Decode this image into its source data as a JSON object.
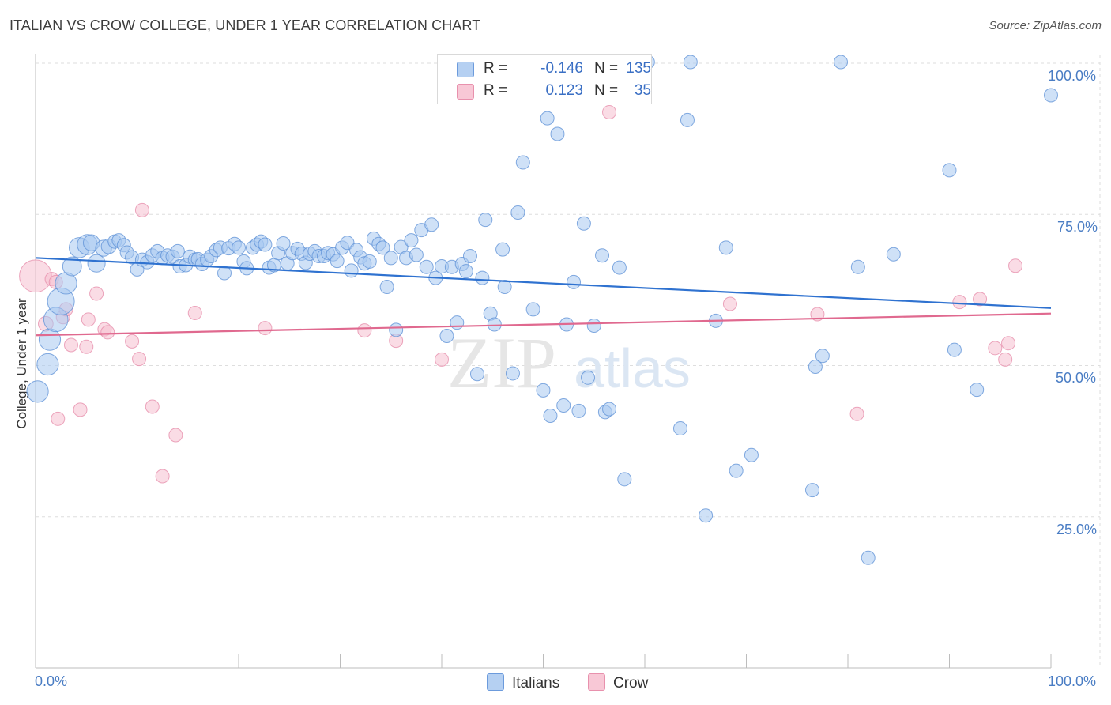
{
  "title": "ITALIAN VS CROW COLLEGE, UNDER 1 YEAR CORRELATION CHART",
  "source": "Source: ZipAtlas.com",
  "watermark": {
    "zip": "ZIP",
    "atlas": "atlas"
  },
  "colors": {
    "blue_fill": "#a8c8f0",
    "blue_stroke": "#5b8fd6",
    "blue_line": "#2f72d0",
    "pink_fill": "#f6bfd0",
    "pink_stroke": "#e58aa8",
    "pink_line": "#e0698f",
    "tick_text": "#4a7dc4",
    "grid": "#dedede"
  },
  "legend": {
    "italians": {
      "r_label": "R =",
      "r_value": "-0.146",
      "n_label": "N =",
      "n_value": "135"
    },
    "crow": {
      "r_label": "R =",
      "r_value": "0.123",
      "n_label": "N =",
      "n_value": "35"
    }
  },
  "chart_data": {
    "type": "scatter",
    "title": "ITALIAN VS CROW COLLEGE, UNDER 1 YEAR CORRELATION CHART",
    "xlabel": "",
    "ylabel": "College, Under 1 year",
    "xlim": [
      0,
      100
    ],
    "ylim": [
      0,
      100
    ],
    "x_tick_labels": [
      "0.0%",
      "100.0%"
    ],
    "y_tick_labels": [
      "100.0%",
      "75.0%",
      "50.0%",
      "25.0%"
    ],
    "y_ticks": [
      100,
      75,
      50,
      25
    ],
    "grid": true,
    "legend_position": "bottom-center",
    "series": [
      {
        "name": "Italians",
        "trend": {
          "x": [
            0,
            100
          ],
          "y": [
            67.8,
            59.5
          ]
        },
        "points": [
          [
            0.2,
            45.7,
            1.6
          ],
          [
            1.2,
            50.2,
            1.6
          ],
          [
            1.4,
            54.3,
            1.6
          ],
          [
            2.0,
            57.6,
            1.8
          ],
          [
            2.5,
            60.6,
            2.0
          ],
          [
            3.0,
            63.6,
            1.6
          ],
          [
            3.6,
            66.4,
            1.4
          ],
          [
            4.3,
            69.5,
            1.5
          ],
          [
            5.1,
            70.0,
            1.5
          ],
          [
            5.5,
            70.3,
            1.2
          ],
          [
            6.0,
            66.9,
            1.3
          ],
          [
            6.7,
            69.4,
            1.2
          ],
          [
            7.2,
            69.7,
            1.1
          ],
          [
            7.8,
            70.5,
            1.0
          ],
          [
            8.2,
            70.7,
            1.0
          ],
          [
            8.7,
            69.9,
            1.0
          ],
          [
            9.0,
            68.7,
            1.0
          ],
          [
            9.5,
            67.9,
            1.0
          ],
          [
            10.0,
            65.9,
            1.0
          ],
          [
            10.5,
            67.5,
            1.0
          ],
          [
            11.0,
            67.1,
            1.0
          ],
          [
            11.5,
            68.2,
            1.0
          ],
          [
            12.0,
            68.9,
            1.0
          ],
          [
            12.5,
            67.8,
            1.0
          ],
          [
            13.0,
            68.2,
            1.0
          ],
          [
            13.5,
            68.0,
            1.0
          ],
          [
            14.0,
            68.9,
            1.0
          ],
          [
            14.2,
            66.4,
            1.0
          ],
          [
            14.8,
            66.6,
            1.0
          ],
          [
            15.2,
            68.0,
            1.0
          ],
          [
            15.7,
            67.5,
            1.0
          ],
          [
            16.0,
            67.6,
            1.0
          ],
          [
            16.4,
            66.8,
            1.0
          ],
          [
            16.9,
            67.5,
            1.0
          ],
          [
            17.3,
            68.1,
            1.0
          ],
          [
            17.8,
            69.1,
            1.0
          ],
          [
            18.2,
            69.5,
            1.0
          ],
          [
            18.6,
            65.3,
            1.0
          ],
          [
            19.0,
            69.4,
            1.0
          ],
          [
            19.6,
            70.1,
            1.0
          ],
          [
            20.0,
            69.5,
            1.0
          ],
          [
            20.5,
            67.2,
            1.0
          ],
          [
            20.8,
            66.1,
            1.0
          ],
          [
            21.4,
            69.5,
            1.0
          ],
          [
            21.8,
            70.0,
            1.0
          ],
          [
            22.2,
            70.5,
            1.0
          ],
          [
            22.6,
            70.0,
            1.0
          ],
          [
            23.0,
            66.2,
            1.0
          ],
          [
            23.5,
            66.6,
            1.0
          ],
          [
            23.9,
            68.6,
            1.0
          ],
          [
            24.4,
            70.2,
            1.0
          ],
          [
            24.8,
            66.9,
            1.0
          ],
          [
            25.3,
            68.6,
            1.0
          ],
          [
            25.8,
            69.3,
            1.0
          ],
          [
            26.2,
            68.5,
            1.0
          ],
          [
            26.6,
            67.0,
            1.0
          ],
          [
            27.0,
            68.5,
            1.0
          ],
          [
            27.5,
            68.9,
            1.0
          ],
          [
            27.9,
            68.1,
            1.0
          ],
          [
            28.4,
            68.1,
            1.0
          ],
          [
            28.8,
            68.6,
            1.0
          ],
          [
            29.3,
            68.4,
            1.0
          ],
          [
            29.7,
            67.3,
            1.0
          ],
          [
            30.2,
            69.5,
            1.0
          ],
          [
            30.7,
            70.3,
            1.0
          ],
          [
            31.1,
            65.7,
            1.0
          ],
          [
            31.6,
            69.1,
            1.0
          ],
          [
            32.0,
            67.9,
            1.0
          ],
          [
            32.4,
            66.9,
            1.0
          ],
          [
            32.9,
            67.2,
            1.0
          ],
          [
            33.3,
            71.0,
            1.0
          ],
          [
            33.8,
            70.1,
            1.0
          ],
          [
            34.2,
            69.5,
            1.0
          ],
          [
            34.6,
            63.0,
            1.0
          ],
          [
            35.0,
            67.8,
            1.0
          ],
          [
            35.5,
            55.9,
            1.0
          ],
          [
            36.0,
            69.6,
            1.0
          ],
          [
            36.5,
            67.8,
            1.0
          ],
          [
            37.0,
            70.7,
            1.0
          ],
          [
            37.5,
            68.3,
            1.0
          ],
          [
            38.0,
            72.4,
            1.0
          ],
          [
            38.5,
            66.3,
            1.0
          ],
          [
            39.0,
            73.3,
            1.0
          ],
          [
            39.4,
            64.5,
            1.0
          ],
          [
            40.0,
            66.4,
            1.0
          ],
          [
            40.5,
            54.9,
            1.0
          ],
          [
            41.0,
            66.3,
            1.0
          ],
          [
            41.5,
            57.1,
            1.0
          ],
          [
            42.0,
            66.8,
            1.0
          ],
          [
            42.4,
            65.6,
            1.0
          ],
          [
            42.8,
            68.1,
            1.0
          ],
          [
            43.5,
            48.6,
            1.0
          ],
          [
            44.0,
            64.5,
            1.0
          ],
          [
            44.3,
            74.1,
            1.0
          ],
          [
            44.8,
            58.6,
            1.0
          ],
          [
            45.2,
            56.8,
            1.0
          ],
          [
            46.0,
            69.2,
            1.0
          ],
          [
            46.2,
            63.0,
            1.0
          ],
          [
            47.0,
            48.7,
            1.0
          ],
          [
            47.5,
            75.3,
            1.0
          ],
          [
            48.0,
            83.6,
            1.0
          ],
          [
            49.0,
            59.3,
            1.0
          ],
          [
            50.0,
            45.9,
            1.0
          ],
          [
            50.4,
            90.9,
            1.0
          ],
          [
            50.7,
            41.7,
            1.0
          ],
          [
            51.4,
            88.3,
            1.0
          ],
          [
            52.0,
            43.4,
            1.0
          ],
          [
            52.3,
            56.8,
            1.0
          ],
          [
            53.0,
            63.8,
            1.0
          ],
          [
            53.5,
            42.5,
            1.0
          ],
          [
            54.0,
            73.5,
            1.0
          ],
          [
            54.4,
            48.0,
            1.0
          ],
          [
            55.0,
            56.6,
            1.0
          ],
          [
            55.8,
            68.2,
            1.0
          ],
          [
            56.1,
            42.3,
            1.0
          ],
          [
            56.5,
            42.8,
            1.0
          ],
          [
            57.5,
            66.2,
            1.0
          ],
          [
            58.0,
            31.2,
            1.0
          ],
          [
            63.5,
            39.6,
            1.0
          ],
          [
            64.2,
            90.6,
            1.0
          ],
          [
            64.5,
            100.2,
            1.0
          ],
          [
            66.0,
            25.2,
            1.0
          ],
          [
            67.0,
            57.4,
            1.0
          ],
          [
            68.0,
            69.5,
            1.0
          ],
          [
            69.0,
            32.6,
            1.0
          ],
          [
            70.5,
            35.2,
            1.0
          ],
          [
            76.5,
            29.4,
            1.0
          ],
          [
            76.8,
            49.8,
            1.0
          ],
          [
            77.5,
            51.6,
            1.0
          ],
          [
            79.3,
            100.2,
            1.0
          ],
          [
            81.0,
            66.3,
            1.0
          ],
          [
            82.0,
            18.2,
            1.0
          ],
          [
            84.5,
            68.4,
            1.0
          ],
          [
            90.0,
            82.3,
            1.0
          ],
          [
            90.5,
            52.6,
            1.0
          ],
          [
            92.7,
            46.0,
            1.0
          ],
          [
            100.0,
            94.7,
            1.0
          ],
          [
            56.2,
            100.1,
            1.0
          ],
          [
            60.3,
            100.2,
            1.0
          ]
        ]
      },
      {
        "name": "Crow",
        "trend": {
          "x": [
            0,
            100
          ],
          "y": [
            55.0,
            58.6
          ]
        },
        "points": [
          [
            0.0,
            64.8,
            2.4
          ],
          [
            1.0,
            56.9,
            1.1
          ],
          [
            1.6,
            64.3,
            1.0
          ],
          [
            2.0,
            63.8,
            1.0
          ],
          [
            2.2,
            41.2,
            1.0
          ],
          [
            2.7,
            58.0,
            1.0
          ],
          [
            3.0,
            59.3,
            1.0
          ],
          [
            3.5,
            53.4,
            1.0
          ],
          [
            4.4,
            42.7,
            1.0
          ],
          [
            5.0,
            53.1,
            1.0
          ],
          [
            5.2,
            57.6,
            1.0
          ],
          [
            6.0,
            61.9,
            1.0
          ],
          [
            6.8,
            56.0,
            1.0
          ],
          [
            7.1,
            55.5,
            1.0
          ],
          [
            9.5,
            54.0,
            1.0
          ],
          [
            10.2,
            51.1,
            1.0
          ],
          [
            10.5,
            75.7,
            1.0
          ],
          [
            11.5,
            43.2,
            1.0
          ],
          [
            12.5,
            31.7,
            1.0
          ],
          [
            13.8,
            38.5,
            1.0
          ],
          [
            15.7,
            58.7,
            1.0
          ],
          [
            22.6,
            56.2,
            1.0
          ],
          [
            32.4,
            55.8,
            1.0
          ],
          [
            35.5,
            54.1,
            1.0
          ],
          [
            40.0,
            51.0,
            1.0
          ],
          [
            56.5,
            91.9,
            1.0
          ],
          [
            68.4,
            60.2,
            1.0
          ],
          [
            77.0,
            58.5,
            1.0
          ],
          [
            80.9,
            42.0,
            1.0
          ],
          [
            91.0,
            60.5,
            1.0
          ],
          [
            93.0,
            61.0,
            1.0
          ],
          [
            94.5,
            52.9,
            1.0
          ],
          [
            95.5,
            51.0,
            1.0
          ],
          [
            95.8,
            53.7,
            1.0
          ],
          [
            96.5,
            66.5,
            1.0
          ]
        ]
      }
    ]
  },
  "bottom_legend": {
    "italians": "Italians",
    "crow": "Crow"
  }
}
